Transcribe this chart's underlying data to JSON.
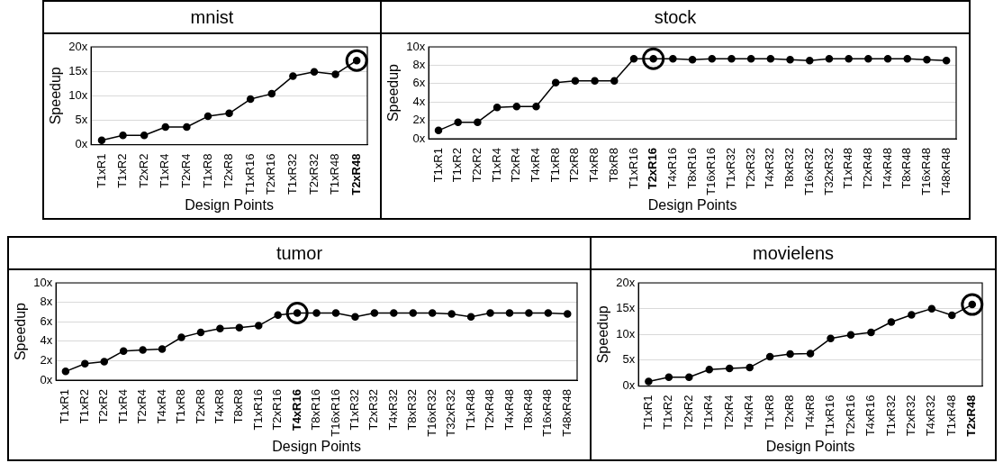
{
  "chart_data": [
    {
      "type": "line",
      "title": "mnist",
      "xlabel": "Design Points",
      "ylabel": "Speedup",
      "grid": "y",
      "legend": false,
      "marker": "circle",
      "categories": [
        "T1xR1",
        "T1xR2",
        "T2xR2",
        "T1xR4",
        "T2xR4",
        "T1xR8",
        "T2xR8",
        "T1xR16",
        "T2xR16",
        "T1xR32",
        "T2xR32",
        "T1xR48",
        "T2xR48"
      ],
      "ylim": [
        0,
        20
      ],
      "yticks": [
        {
          "value": 0,
          "label": "0x"
        },
        {
          "value": 5,
          "label": "5x"
        },
        {
          "value": 10,
          "label": "10x"
        },
        {
          "value": 15,
          "label": "15x"
        },
        {
          "value": 20,
          "label": "20x"
        }
      ],
      "series": [
        {
          "color": "#000000",
          "values": [
            0.9,
            1.9,
            1.9,
            3.6,
            3.6,
            5.8,
            6.4,
            9.3,
            10.4,
            14,
            14.9,
            14.4,
            17.2
          ]
        },
        {
          "type": "scatter",
          "color": "#000000",
          "x": [
            "T2xR48"
          ],
          "values": [
            17.2
          ]
        }
      ]
    },
    {
      "type": "line",
      "title": "stock",
      "xlabel": "Design Points",
      "ylabel": "Speedup",
      "grid": "y",
      "legend": false,
      "marker": "circle",
      "categories": [
        "T1xR1",
        "T1xR2",
        "T2xR2",
        "T1xR4",
        "T2xR4",
        "T4xR4",
        "T1xR8",
        "T2xR8",
        "T4xR8",
        "T8xR8",
        "T1xR16",
        "T2xR16",
        "T4xR16",
        "T8xR16",
        "T16xR16",
        "T1xR32",
        "T2xR32",
        "T4xR32",
        "T8xR32",
        "T16xR32",
        "T32xR32",
        "T1xR48",
        "T2xR48",
        "T4xR48",
        "T8xR48",
        "T16xR48",
        "T48xR48"
      ],
      "ylim": [
        0,
        10
      ],
      "yticks": [
        {
          "value": 0,
          "label": "0x"
        },
        {
          "value": 2,
          "label": "2x"
        },
        {
          "value": 4,
          "label": "4x"
        },
        {
          "value": 6,
          "label": "6x"
        },
        {
          "value": 8,
          "label": "8x"
        },
        {
          "value": 10,
          "label": "10x"
        }
      ],
      "series": [
        {
          "color": "#000000",
          "values": [
            0.9,
            1.8,
            1.8,
            3.4,
            3.5,
            3.5,
            6.1,
            6.3,
            6.3,
            6.3,
            8.7,
            8.7,
            8.7,
            8.6,
            8.7,
            8.7,
            8.7,
            8.7,
            8.6,
            8.5,
            8.7,
            8.7,
            8.7,
            8.7,
            8.7,
            8.6,
            8.5
          ]
        },
        {
          "type": "scatter",
          "color": "#000000",
          "x": [
            "T2xR16"
          ],
          "values": [
            8.7
          ]
        }
      ]
    },
    {
      "type": "line",
      "title": "tumor",
      "xlabel": "Design Points",
      "ylabel": "Speedup",
      "grid": "y",
      "legend": false,
      "marker": "circle",
      "categories": [
        "T1xR1",
        "T1xR2",
        "T2xR2",
        "T1xR4",
        "T2xR4",
        "T4xR4",
        "T1xR8",
        "T2xR8",
        "T4xR8",
        "T8xR8",
        "T1xR16",
        "T2xR16",
        "T4xR16",
        "T8xR16",
        "T16xR16",
        "T1xR32",
        "T2xR32",
        "T4xR32",
        "T8xR32",
        "T16xR32",
        "T32xR32",
        "T1xR48",
        "T2xR48",
        "T4xR48",
        "T8xR48",
        "T16xR48",
        "T48xR48"
      ],
      "ylim": [
        0,
        10
      ],
      "yticks": [
        {
          "value": 0,
          "label": "0x"
        },
        {
          "value": 2,
          "label": "2x"
        },
        {
          "value": 4,
          "label": "4x"
        },
        {
          "value": 6,
          "label": "6x"
        },
        {
          "value": 8,
          "label": "8x"
        },
        {
          "value": 10,
          "label": "10x"
        }
      ],
      "series": [
        {
          "color": "#000000",
          "values": [
            0.9,
            1.7,
            1.9,
            3.0,
            3.1,
            3.2,
            4.4,
            4.9,
            5.3,
            5.4,
            5.6,
            6.7,
            6.9,
            6.9,
            6.9,
            6.5,
            6.9,
            6.9,
            6.9,
            6.9,
            6.8,
            6.5,
            6.9,
            6.9,
            6.9,
            6.9,
            6.8
          ]
        },
        {
          "type": "scatter",
          "color": "#000000",
          "x": [
            "T4xR16"
          ],
          "values": [
            6.9
          ]
        }
      ]
    },
    {
      "type": "line",
      "title": "movielens",
      "xlabel": "Design Points",
      "ylabel": "Speedup",
      "grid": "y",
      "legend": false,
      "marker": "circle",
      "categories": [
        "T1xR1",
        "T1xR2",
        "T2xR2",
        "T1xR4",
        "T2xR4",
        "T4xR4",
        "T1xR8",
        "T2xR8",
        "T4xR8",
        "T1xR16",
        "T2xR16",
        "T4xR16",
        "T1xR32",
        "T2xR32",
        "T4xR32",
        "T1xR48",
        "T2xR48"
      ],
      "ylim": [
        0,
        20
      ],
      "yticks": [
        {
          "value": 0,
          "label": "0x"
        },
        {
          "value": 5,
          "label": "5x"
        },
        {
          "value": 10,
          "label": "10x"
        },
        {
          "value": 15,
          "label": "15x"
        },
        {
          "value": 20,
          "label": "20x"
        }
      ],
      "series": [
        {
          "color": "#000000",
          "values": [
            0.9,
            1.7,
            1.7,
            3.2,
            3.4,
            3.6,
            5.7,
            6.2,
            6.3,
            9.2,
            9.9,
            10.4,
            12.4,
            13.8,
            15,
            13.7,
            15.8
          ]
        },
        {
          "type": "scatter",
          "color": "#000000",
          "x": [
            "T2xR48"
          ],
          "values": [
            15.8
          ]
        }
      ]
    }
  ]
}
